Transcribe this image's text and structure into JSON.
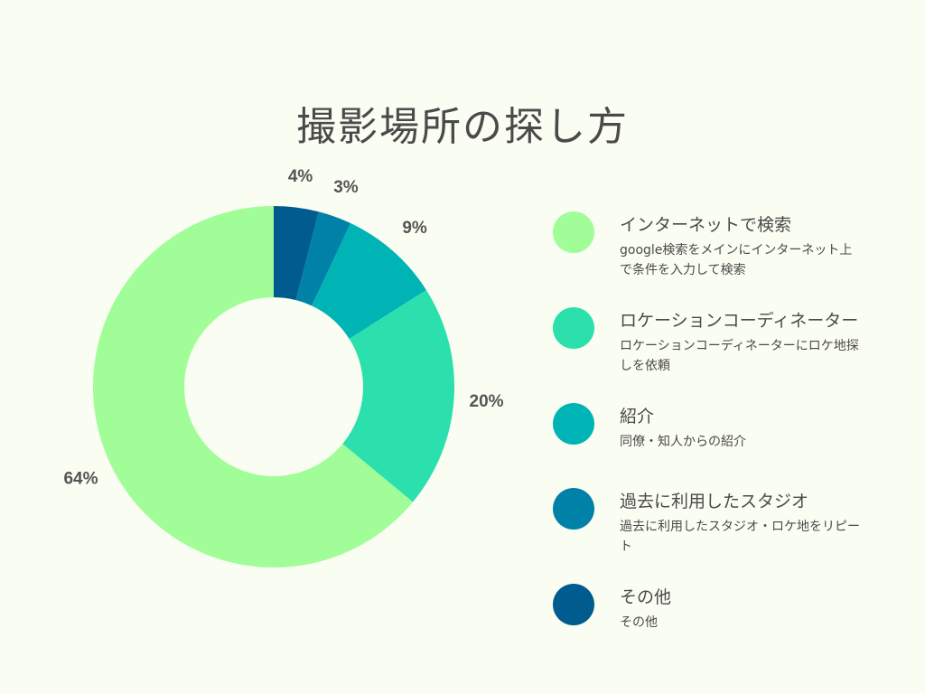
{
  "chart_data": {
    "type": "pie",
    "title": "撮影場所の探し方",
    "categories": [
      "インターネットで検索",
      "ロケーションコーディネーター",
      "紹介",
      "過去に利用したスタジオ",
      "その他"
    ],
    "values": [
      64,
      20,
      9,
      3,
      4
    ],
    "labels": [
      "64%",
      "20%",
      "9%",
      "3%",
      "4%"
    ],
    "colors": [
      "#a1fd98",
      "#2ce0ad",
      "#00b4b6",
      "#0082a8",
      "#005b8e"
    ],
    "descriptions": [
      "google検索をメインにインターネット上で条件を入力して検索",
      "ロケーションコーディネーターにロケ地探しを依頼",
      "同僚・知人からの紹介",
      "過去に利用したスタジオ・ロケ地をリピート",
      "その他"
    ],
    "legend_position": "right"
  }
}
